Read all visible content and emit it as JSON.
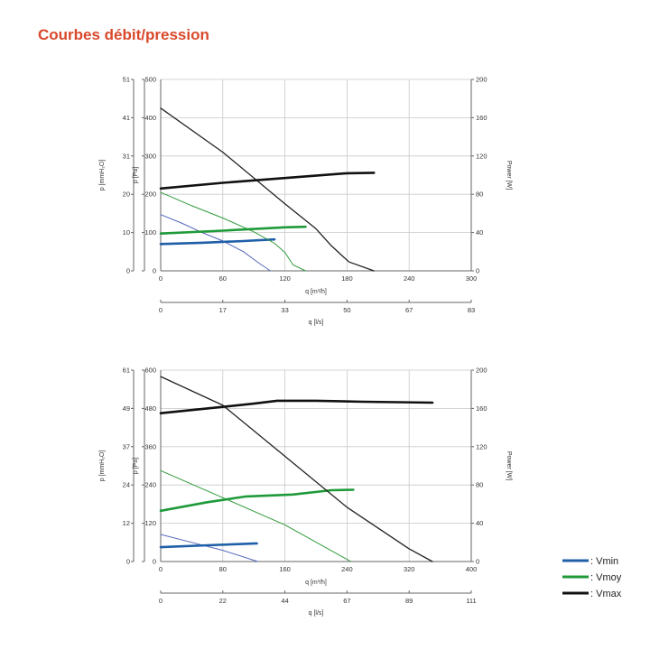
{
  "page": {
    "title": "Courbes débit/pression"
  },
  "legend": [
    {
      "label": ": Vmin",
      "color": "#1f5fa8"
    },
    {
      "label": ": Vmoy",
      "color": "#1f9a3a"
    },
    {
      "label": ": Vmax",
      "color": "#111111"
    }
  ],
  "chart_data": [
    {
      "type": "line",
      "x_axis": {
        "label": "q [m³/h]",
        "range": [
          0,
          300
        ],
        "ticks": [
          "0",
          "60",
          "120",
          "180",
          "240",
          "300"
        ]
      },
      "x2_axis": {
        "label": "q [l/s]",
        "ticks": [
          "0",
          "17",
          "33",
          "50",
          "67",
          "83"
        ]
      },
      "y_axis": {
        "label": "p [Pa]",
        "range": [
          0,
          500
        ],
        "ticks": [
          "0",
          "100",
          "200",
          "300",
          "400",
          "500"
        ]
      },
      "y_outer_axis": {
        "label": "p [mmH₂O]",
        "ticks": [
          "0",
          "10",
          "20",
          "31",
          "41",
          "51"
        ]
      },
      "y2_axis": {
        "label": "Power [W]",
        "range": [
          0,
          200
        ],
        "ticks": [
          "0",
          "40",
          "80",
          "120",
          "160",
          "200"
        ]
      },
      "grid": true,
      "series": [
        {
          "role": "pressure",
          "level": "Vmin",
          "color": "#5566bb",
          "width": 1,
          "x": [
            0,
            20,
            40,
            60,
            80,
            95,
            106
          ],
          "y": [
            147,
            125,
            100,
            78,
            50,
            20,
            0
          ]
        },
        {
          "role": "power",
          "level": "Vmin",
          "color": "#1f5fa8",
          "width": 2.6,
          "x": [
            0,
            40,
            80,
            110
          ],
          "y": [
            28,
            29.3,
            31.1,
            32.8
          ]
        },
        {
          "role": "pressure",
          "level": "Vmoy",
          "color": "#2e9a3a",
          "width": 1,
          "x": [
            0,
            30,
            60,
            90,
            110,
            120,
            128,
            140
          ],
          "y": [
            205,
            170,
            138,
            102,
            72,
            48,
            15,
            0
          ]
        },
        {
          "role": "power",
          "level": "Vmoy",
          "color": "#1f9a3a",
          "width": 2.6,
          "x": [
            0,
            60,
            120,
            140
          ],
          "y": [
            39,
            42,
            45.5,
            46
          ]
        },
        {
          "role": "pressure",
          "level": "Vmax",
          "color": "#222222",
          "width": 1.3,
          "x": [
            0,
            60,
            120,
            150,
            165,
            175,
            182,
            206
          ],
          "y": [
            425,
            310,
            175,
            110,
            65,
            40,
            23,
            0
          ]
        },
        {
          "role": "power",
          "level": "Vmax",
          "color": "#111111",
          "width": 2.6,
          "x": [
            0,
            60,
            120,
            180,
            206
          ],
          "y": [
            86,
            92,
            97,
            102,
            102.5
          ]
        }
      ]
    },
    {
      "type": "line",
      "x_axis": {
        "label": "q [m³/h]",
        "range": [
          0,
          400
        ],
        "ticks": [
          "0",
          "80",
          "160",
          "240",
          "320",
          "400"
        ]
      },
      "x2_axis": {
        "label": "q [l/s]",
        "ticks": [
          "0",
          "22",
          "44",
          "67",
          "89",
          "111"
        ]
      },
      "y_axis": {
        "label": "p [Pa]",
        "range": [
          0,
          600
        ],
        "ticks": [
          "0",
          "120",
          "240",
          "360",
          "480",
          "600"
        ]
      },
      "y_outer_axis": {
        "label": "p [mmH₂O]",
        "ticks": [
          "0",
          "12",
          "24",
          "37",
          "49",
          "61"
        ]
      },
      "y2_axis": {
        "label": "Power [W]",
        "range": [
          0,
          200
        ],
        "ticks": [
          "0",
          "40",
          "80",
          "120",
          "160",
          "200"
        ]
      },
      "grid": true,
      "series": [
        {
          "role": "pressure",
          "level": "Vmin",
          "color": "#5566bb",
          "width": 1,
          "x": [
            0,
            40,
            80,
            125
          ],
          "y": [
            85,
            60,
            35,
            0
          ]
        },
        {
          "role": "power",
          "level": "Vmin",
          "color": "#1f5fa8",
          "width": 2.6,
          "x": [
            0,
            60,
            124
          ],
          "y": [
            15,
            17,
            19
          ]
        },
        {
          "role": "pressure",
          "level": "Vmoy",
          "color": "#2e9a3a",
          "width": 1,
          "x": [
            0,
            80,
            160,
            245
          ],
          "y": [
            285,
            200,
            115,
            0
          ]
        },
        {
          "role": "power",
          "level": "Vmoy",
          "color": "#1f9a3a",
          "width": 2.6,
          "x": [
            0,
            60,
            110,
            170,
            220,
            248
          ],
          "y": [
            53,
            62,
            68,
            70,
            74.5,
            75
          ]
        },
        {
          "role": "pressure",
          "level": "Vmax",
          "color": "#222222",
          "width": 1.3,
          "x": [
            0,
            80,
            160,
            240,
            320,
            350
          ],
          "y": [
            580,
            490,
            330,
            170,
            40,
            0
          ]
        },
        {
          "role": "power",
          "level": "Vmax",
          "color": "#111111",
          "width": 2.6,
          "x": [
            0,
            60,
            120,
            150,
            200,
            260,
            350
          ],
          "y": [
            155,
            160,
            165,
            168,
            168,
            167,
            166
          ]
        }
      ]
    }
  ]
}
